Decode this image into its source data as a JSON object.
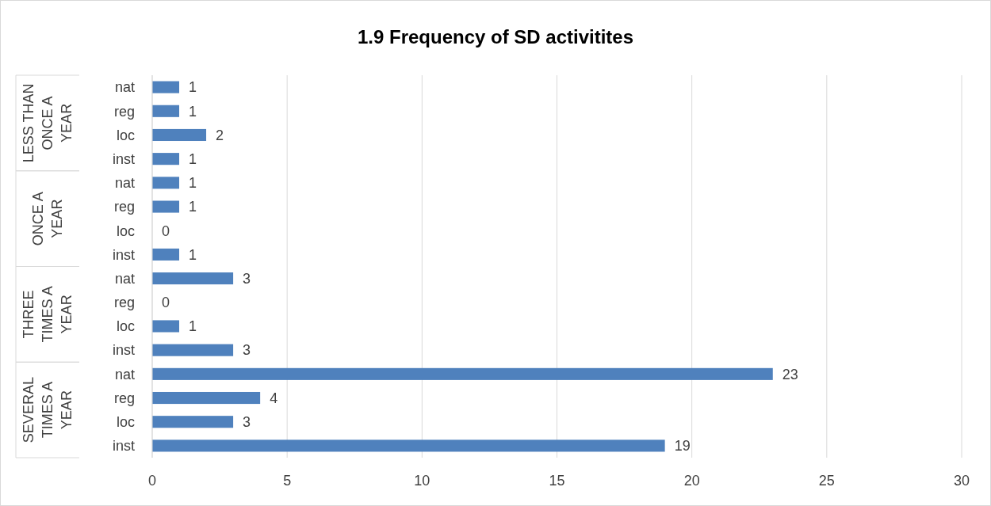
{
  "chart_data": {
    "type": "bar",
    "orientation": "horizontal",
    "title": "1.9 Frequency of SD activitites",
    "categories": [
      "nat",
      "reg",
      "loc",
      "inst",
      "nat",
      "reg",
      "loc",
      "inst",
      "nat",
      "reg",
      "loc",
      "inst",
      "nat",
      "reg",
      "loc",
      "inst"
    ],
    "values": [
      1,
      1,
      2,
      1,
      1,
      1,
      0,
      1,
      3,
      0,
      1,
      3,
      23,
      4,
      3,
      19
    ],
    "color": "#4f81bd",
    "xlim": [
      0,
      30
    ],
    "xticks": [
      0,
      5,
      10,
      15,
      20,
      25,
      30
    ],
    "grid": "x",
    "data_labels": true,
    "annotations": [
      "LESS THAN ONCE A YEAR",
      "ONCE A YEAR",
      "THREE TIMES A YEAR",
      "SEVERAL TIMES A YEAR"
    ]
  }
}
